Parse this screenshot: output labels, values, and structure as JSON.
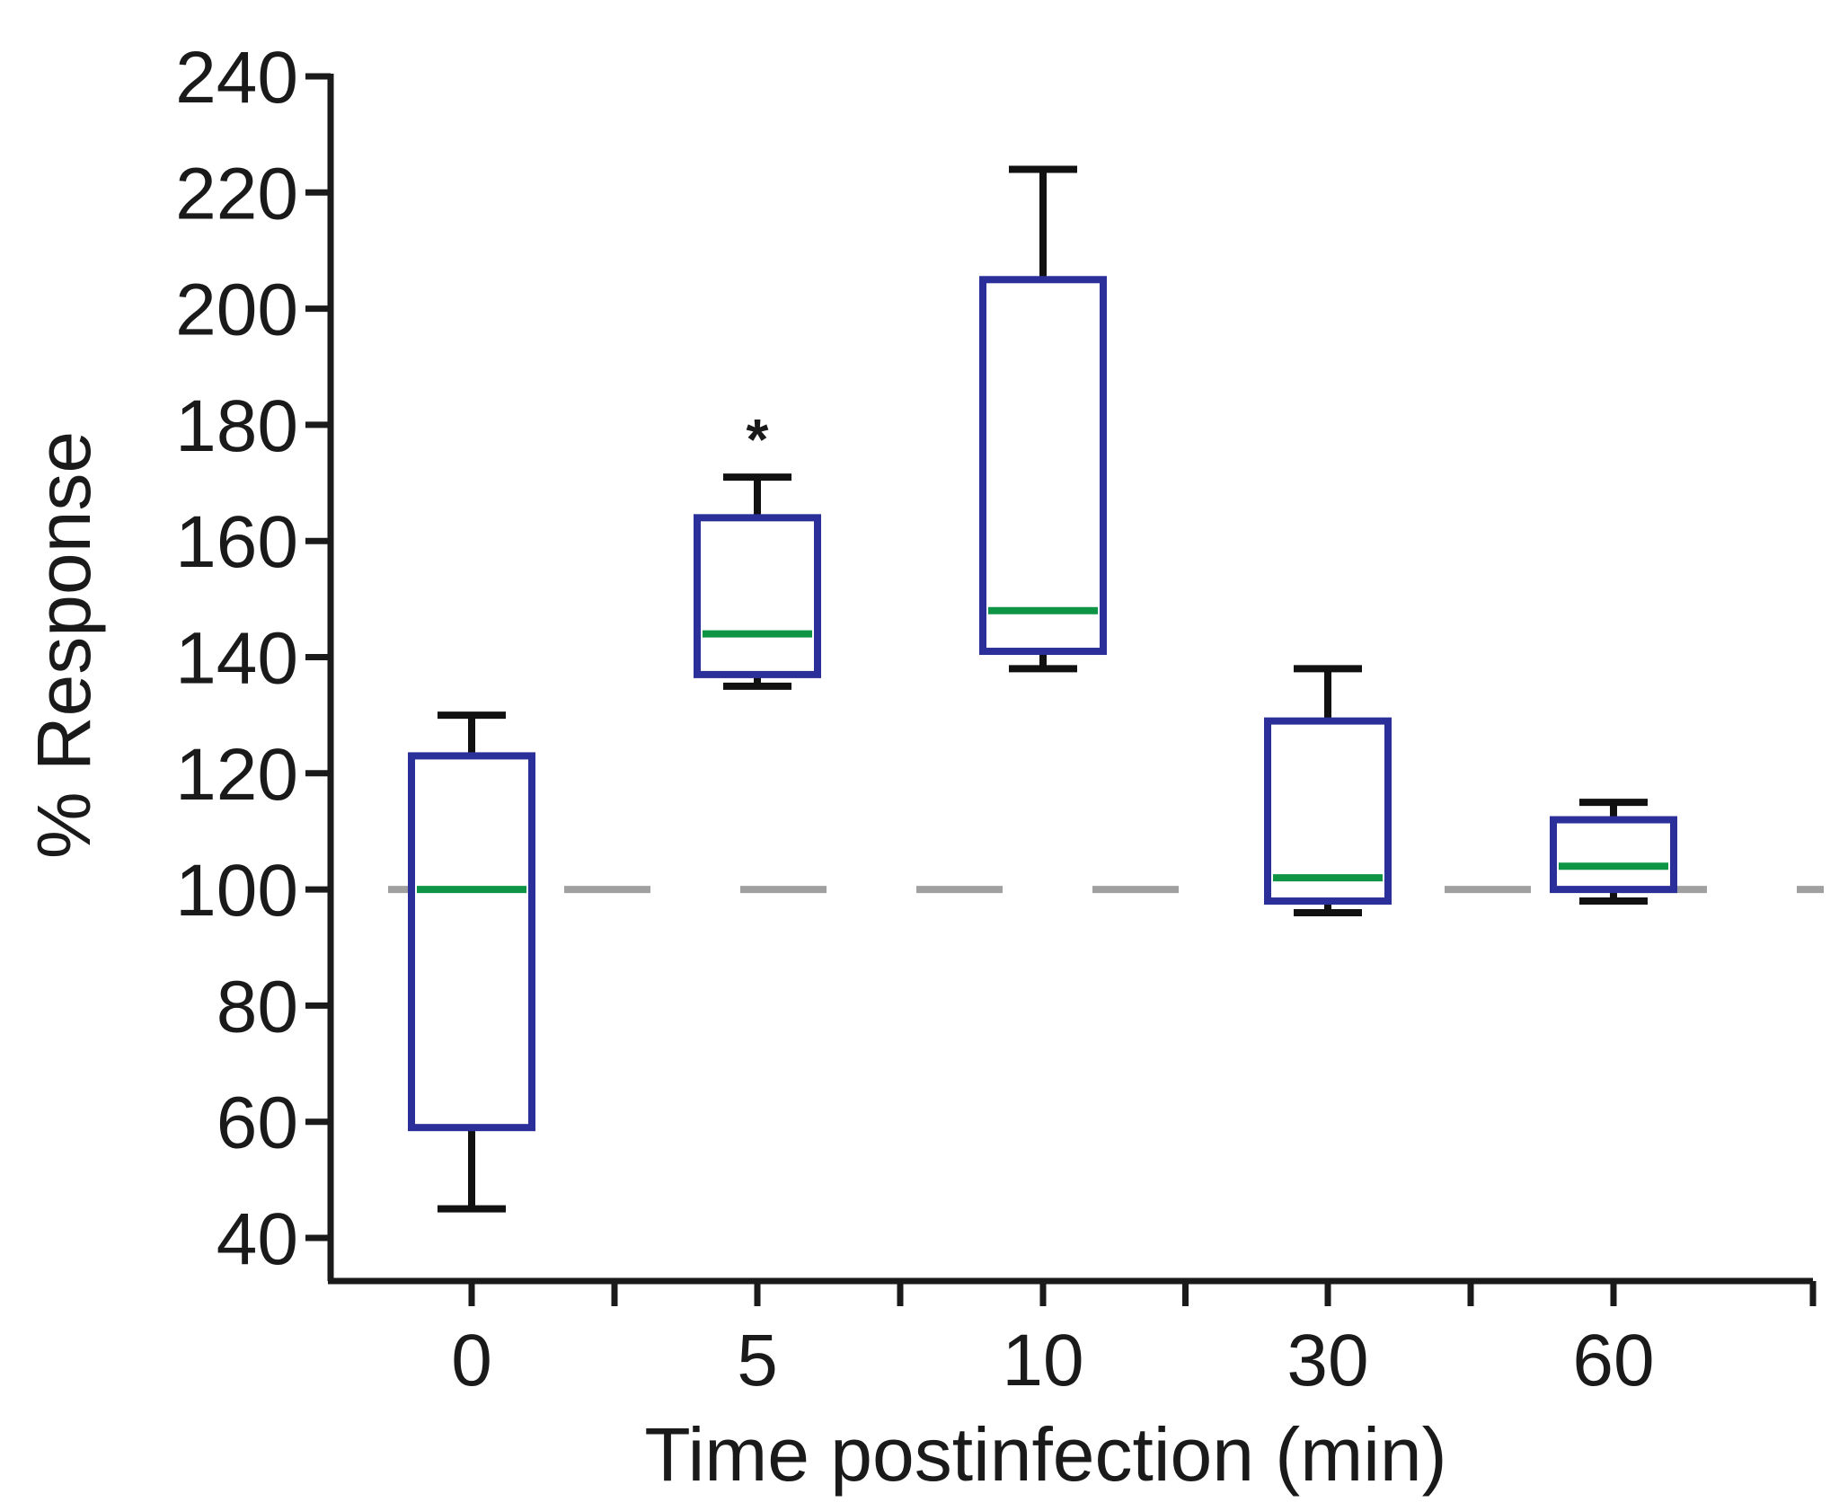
{
  "chart_data": {
    "type": "box",
    "title": "",
    "xlabel": "Time postinfection (min)",
    "ylabel": "% Response",
    "ylim": [
      40,
      240
    ],
    "yticks": [
      40,
      60,
      80,
      100,
      120,
      140,
      160,
      180,
      200,
      220,
      240
    ],
    "categories": [
      "0",
      "5",
      "10",
      "30",
      "60"
    ],
    "boxes": [
      {
        "category": "0",
        "whisker_low": 45,
        "q1": 59,
        "median": 100,
        "q3": 123,
        "whisker_high": 130,
        "annotation": ""
      },
      {
        "category": "5",
        "whisker_low": 135,
        "q1": 137,
        "median": 144,
        "q3": 164,
        "whisker_high": 171,
        "annotation": "*"
      },
      {
        "category": "10",
        "whisker_low": 138,
        "q1": 141,
        "median": 148,
        "q3": 205,
        "whisker_high": 224,
        "annotation": ""
      },
      {
        "category": "30",
        "whisker_low": 96,
        "q1": 98,
        "median": 102,
        "q3": 129,
        "whisker_high": 138,
        "annotation": ""
      },
      {
        "category": "60",
        "whisker_low": 98,
        "q1": 100,
        "median": 104,
        "q3": 112,
        "whisker_high": 115,
        "annotation": ""
      }
    ],
    "reference_line": {
      "y": 100,
      "style": "dashed"
    },
    "grid": false,
    "colors": {
      "box_edge": "#2b2f9a",
      "median": "#0d9444",
      "whisker": "#111111",
      "reference": "#a0a0a0",
      "axis": "#1a1a1a"
    }
  }
}
